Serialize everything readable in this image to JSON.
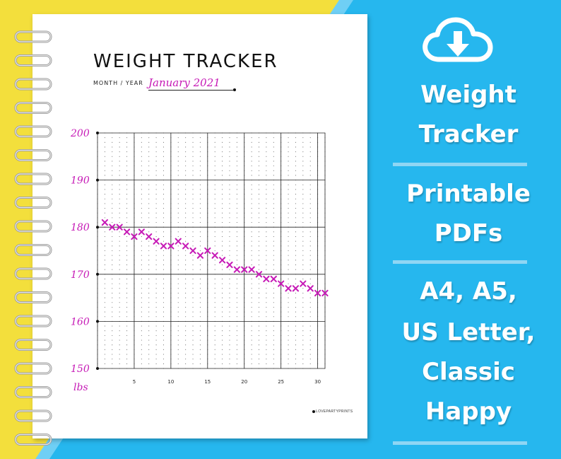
{
  "page": {
    "title": "WEIGHT TRACKER",
    "month_label": "MONTH / YEAR",
    "month_value": "January 2021",
    "brand": "LOVEPARTYPRINTS"
  },
  "promo": {
    "line1": "Weight",
    "line2": "Tracker",
    "line3": "Printable",
    "line4": "PDFs",
    "line5": "A4, A5,",
    "line6": "US Letter,",
    "line7": "Classic",
    "line8": "Happy"
  },
  "icons": {
    "download": "cloud-download-icon"
  },
  "colors": {
    "accent": "#c61ab6",
    "blue": "#26b7ee",
    "yellow": "#f3df3c"
  },
  "chart_data": {
    "type": "scatter",
    "title": "WEIGHT TRACKER",
    "xlabel": "",
    "ylabel": "lbs",
    "xlim": [
      0,
      31
    ],
    "ylim": [
      150,
      200
    ],
    "x_ticks": [
      5,
      10,
      15,
      20,
      25,
      30
    ],
    "y_ticks": [
      150,
      160,
      170,
      180,
      190,
      200
    ],
    "marker": "x",
    "grid": true,
    "x": [
      1,
      2,
      3,
      4,
      5,
      6,
      7,
      8,
      9,
      10,
      11,
      12,
      13,
      14,
      15,
      16,
      17,
      18,
      19,
      20,
      21,
      22,
      23,
      24,
      25,
      26,
      27,
      28,
      29,
      30,
      31
    ],
    "values": [
      181,
      180,
      180,
      179,
      178,
      179,
      178,
      177,
      176,
      176,
      177,
      176,
      175,
      174,
      175,
      174,
      173,
      172,
      171,
      171,
      171,
      170,
      169,
      169,
      168,
      167,
      167,
      168,
      167,
      166,
      166
    ]
  }
}
